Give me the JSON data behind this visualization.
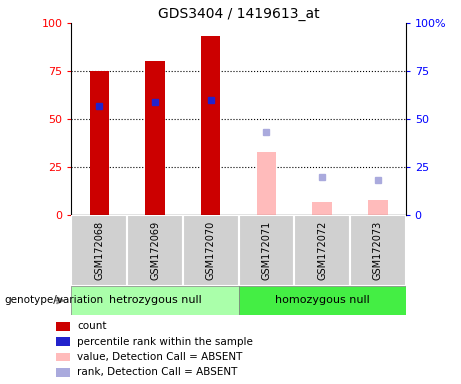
{
  "title": "GDS3404 / 1419613_at",
  "samples": [
    "GSM172068",
    "GSM172069",
    "GSM172070",
    "GSM172071",
    "GSM172072",
    "GSM172073"
  ],
  "group1_label": "hetrozygous null",
  "group2_label": "homozygous null",
  "count_values": [
    75,
    80,
    93,
    null,
    null,
    null
  ],
  "percentile_rank": [
    57,
    59,
    60,
    null,
    null,
    null
  ],
  "absent_value": [
    null,
    null,
    null,
    33,
    7,
    8
  ],
  "absent_rank": [
    null,
    null,
    null,
    43,
    20,
    18
  ],
  "bar_width": 0.35,
  "count_color": "#cc0000",
  "percentile_color": "#2222cc",
  "absent_value_color": "#ffbbbb",
  "absent_rank_color": "#aaaadd",
  "group1_bg": "#aaffaa",
  "group2_bg": "#44ee44",
  "sample_area_bg": "#d0d0d0",
  "legend_items": [
    "count",
    "percentile rank within the sample",
    "value, Detection Call = ABSENT",
    "rank, Detection Call = ABSENT"
  ],
  "legend_colors": [
    "#cc0000",
    "#2222cc",
    "#ffbbbb",
    "#aaaadd"
  ],
  "left_yticks": [
    "0",
    "25",
    "50",
    "75",
    "100"
  ],
  "right_yticks": [
    "0",
    "25",
    "50",
    "75",
    "100%"
  ],
  "ytick_vals": [
    0,
    25,
    50,
    75,
    100
  ]
}
